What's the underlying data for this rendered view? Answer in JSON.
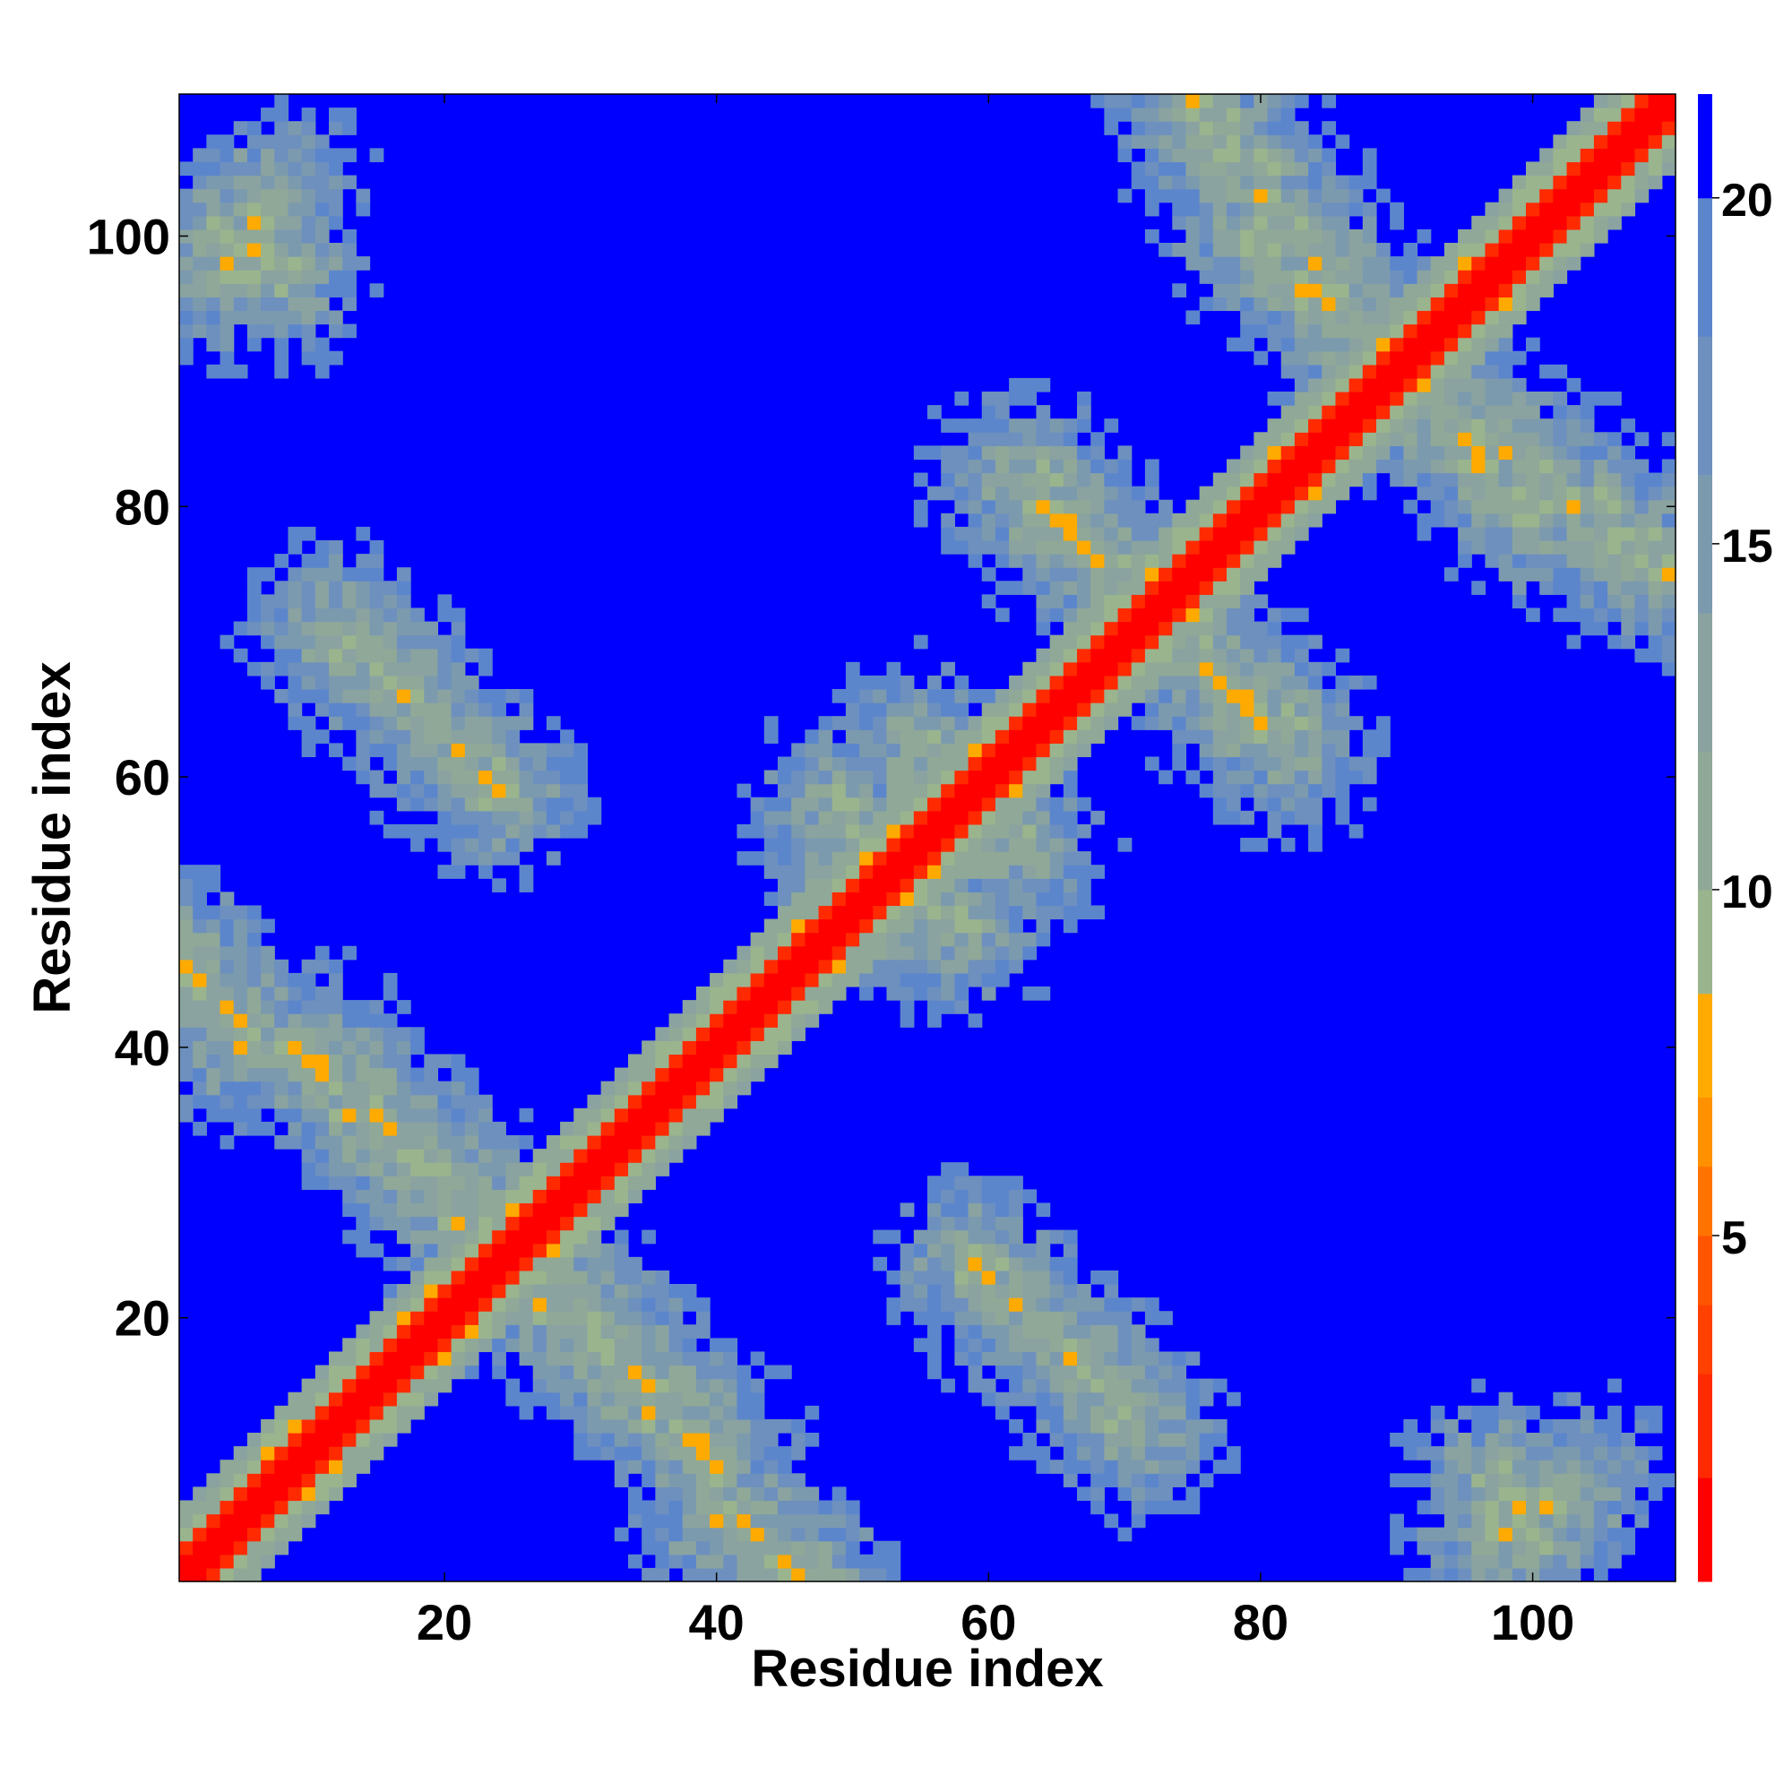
{
  "chart_data": {
    "type": "heatmap",
    "title": "",
    "xlabel": "Residue index",
    "ylabel": "Residue index",
    "xlim": [
      0.5,
      110.5
    ],
    "ylim": [
      0.5,
      110.5
    ],
    "n_residues": 110,
    "x_ticks": [
      20,
      40,
      60,
      80,
      100
    ],
    "y_ticks": [
      20,
      40,
      60,
      80,
      100
    ],
    "colorbar": {
      "ticks": [
        5,
        10,
        15,
        20
      ],
      "range": [
        0,
        21.5
      ],
      "levels": [
        {
          "max": 1.5,
          "color": "#ff0000"
        },
        {
          "max": 3,
          "color": "#ff2a00"
        },
        {
          "max": 4,
          "color": "#ff4000"
        },
        {
          "max": 5,
          "color": "#ff5500"
        },
        {
          "max": 6,
          "color": "#ff7300"
        },
        {
          "max": 7,
          "color": "#ff9000"
        },
        {
          "max": 8.5,
          "color": "#ffaa00"
        },
        {
          "max": 10,
          "color": "#9ab48e"
        },
        {
          "max": 12,
          "color": "#8fa898"
        },
        {
          "max": 14,
          "color": "#8aa3a0"
        },
        {
          "max": 16,
          "color": "#7c9aae"
        },
        {
          "max": 18,
          "color": "#6d90be"
        },
        {
          "max": 20,
          "color": "#5c86cc"
        },
        {
          "max": 21.5,
          "color": "#0000ff"
        }
      ]
    },
    "grid": false,
    "legend": "none",
    "contact_segments_lower": [
      {
        "from": [
          1,
          47
        ],
        "to": [
          6,
          40
        ]
      },
      {
        "from": [
          9,
          40
        ],
        "to": [
          23,
          26
        ]
      },
      {
        "from": [
          12,
          71
        ],
        "to": [
          24,
          59
        ]
      },
      {
        "from": [
          4,
          101
        ],
        "to": [
          8,
          97
        ]
      },
      {
        "from": [
          27,
          24
        ],
        "to": [
          40,
          10
        ]
      },
      {
        "from": [
          40,
          5
        ],
        "to": [
          47,
          1
        ]
      },
      {
        "from": [
          59,
          24
        ],
        "to": [
          70,
          13
        ]
      },
      {
        "from": [
          63,
          82
        ],
        "to": [
          72,
          73
        ]
      },
      {
        "from": [
          73,
          71
        ],
        "to": [
          82,
          62
        ]
      },
      {
        "from": [
          76,
          108
        ],
        "to": [
          82,
          101
        ]
      },
      {
        "from": [
          83,
          99
        ],
        "to": [
          89,
          92
        ]
      },
      {
        "from": [
          92,
          88
        ],
        "to": [
          100,
          79
        ]
      },
      {
        "from": [
          104,
          80
        ],
        "to": [
          110,
          75
        ]
      },
      {
        "from": [
          97,
          3
        ],
        "to": [
          103,
          8
        ]
      },
      {
        "from": [
          49,
          58
        ],
        "to": [
          54,
          50
        ]
      },
      {
        "from": [
          55,
          62
        ],
        "to": [
          60,
          55
        ]
      }
    ]
  }
}
